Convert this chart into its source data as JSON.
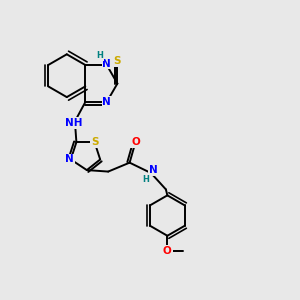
{
  "background_color": "#e8e8e8",
  "atom_colors": {
    "C": "#000000",
    "N": "#0000ff",
    "S": "#ccaa00",
    "O": "#ff0000",
    "H": "#008080"
  },
  "bond_color": "#000000",
  "bond_width": 1.4,
  "font_size": 7.5
}
